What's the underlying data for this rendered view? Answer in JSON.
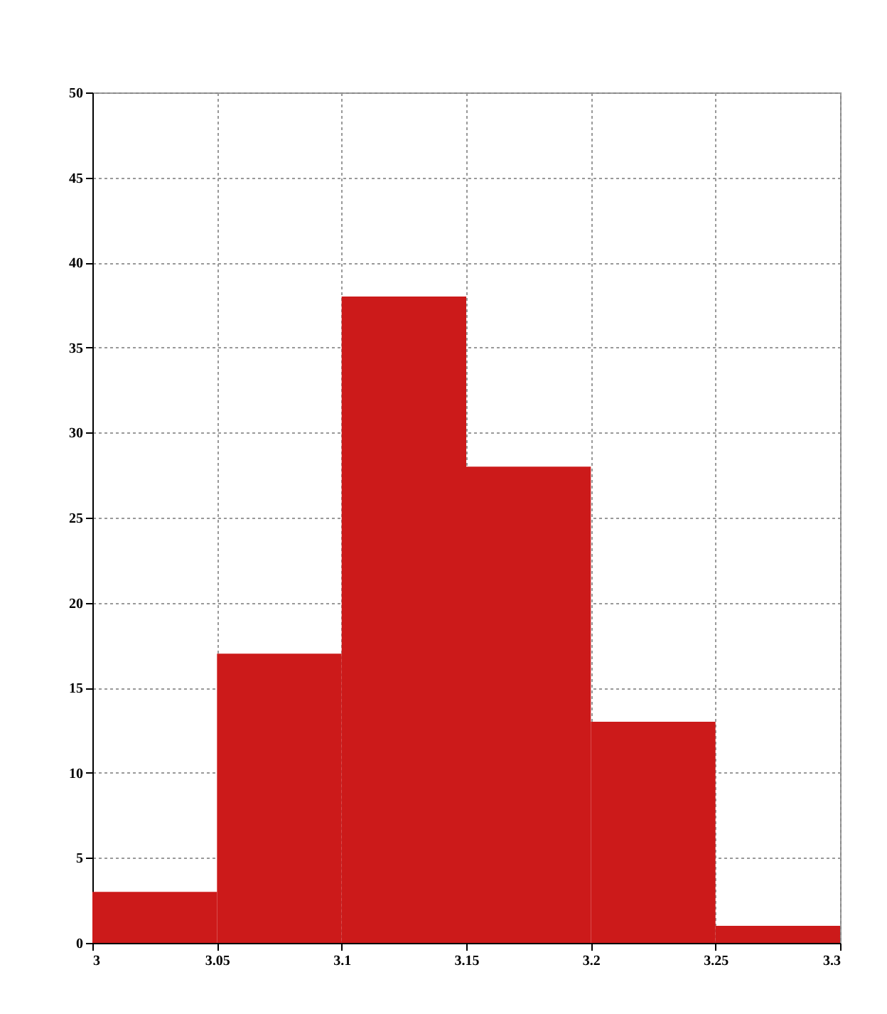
{
  "chart_data": {
    "type": "histogram",
    "bins": [
      3,
      3.05,
      3.1,
      3.15,
      3.2,
      3.25,
      3.3
    ],
    "values": [
      3,
      17,
      38,
      28,
      13,
      1
    ],
    "color": "#cc1a1a",
    "xlim": [
      3,
      3.3
    ],
    "ylim": [
      0,
      50
    ],
    "xticks": [
      3,
      3.05,
      3.1,
      3.15,
      3.2,
      3.25,
      3.3
    ],
    "yticks": [
      0,
      5,
      10,
      15,
      20,
      25,
      30,
      35,
      40,
      45,
      50
    ],
    "grid": true
  }
}
